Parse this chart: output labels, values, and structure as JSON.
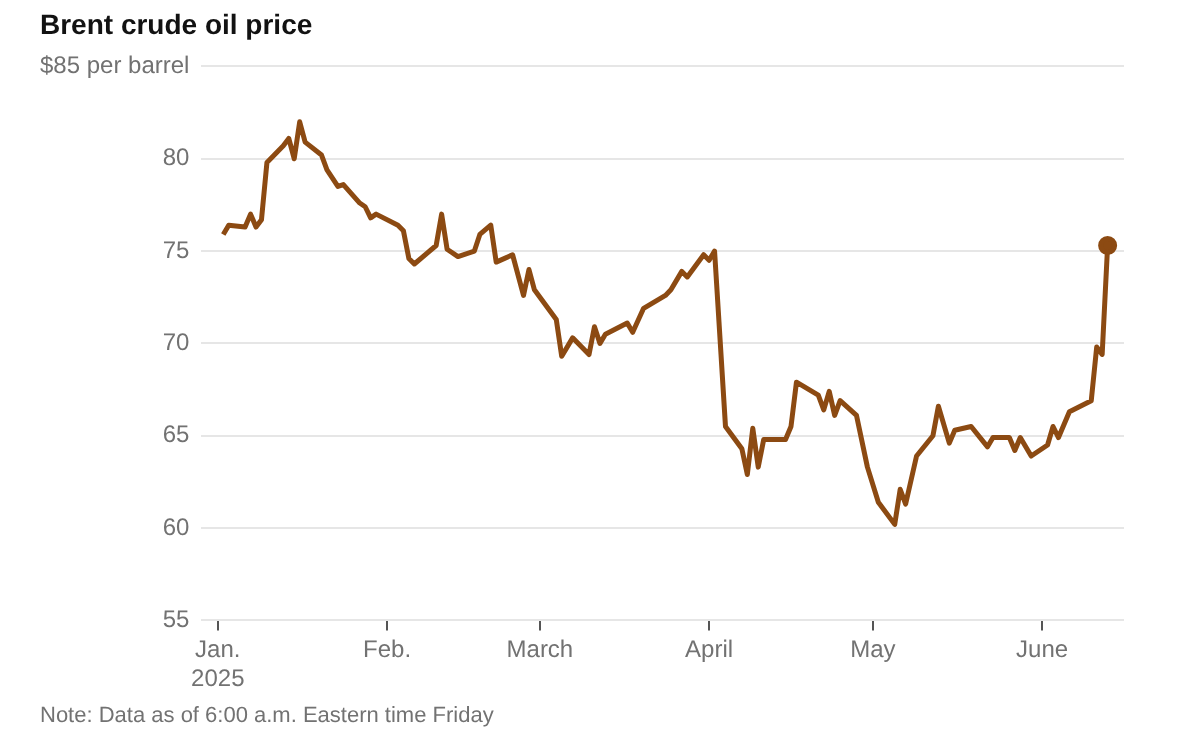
{
  "chart_data": {
    "type": "line",
    "title": "Brent crude oil price",
    "x": [
      "2025-01-02",
      "2025-01-03",
      "2025-01-06",
      "2025-01-07",
      "2025-01-08",
      "2025-01-09",
      "2025-01-10",
      "2025-01-13",
      "2025-01-14",
      "2025-01-15",
      "2025-01-16",
      "2025-01-17",
      "2025-01-20",
      "2025-01-21",
      "2025-01-23",
      "2025-01-24",
      "2025-01-27",
      "2025-01-28",
      "2025-01-29",
      "2025-01-30",
      "2025-02-03",
      "2025-02-04",
      "2025-02-05",
      "2025-02-06",
      "2025-02-10",
      "2025-02-11",
      "2025-02-12",
      "2025-02-14",
      "2025-02-17",
      "2025-02-18",
      "2025-02-20",
      "2025-02-21",
      "2025-02-24",
      "2025-02-26",
      "2025-02-27",
      "2025-02-28",
      "2025-03-04",
      "2025-03-05",
      "2025-03-07",
      "2025-03-10",
      "2025-03-11",
      "2025-03-12",
      "2025-03-13",
      "2025-03-17",
      "2025-03-18",
      "2025-03-20",
      "2025-03-24",
      "2025-03-25",
      "2025-03-27",
      "2025-03-28",
      "2025-03-31",
      "2025-04-01",
      "2025-04-02",
      "2025-04-04",
      "2025-04-07",
      "2025-04-08",
      "2025-04-09",
      "2025-04-10",
      "2025-04-11",
      "2025-04-15",
      "2025-04-16",
      "2025-04-17",
      "2025-04-21",
      "2025-04-22",
      "2025-04-23",
      "2025-04-24",
      "2025-04-25",
      "2025-04-28",
      "2025-04-30",
      "2025-05-02",
      "2025-05-05",
      "2025-05-06",
      "2025-05-07",
      "2025-05-09",
      "2025-05-12",
      "2025-05-13",
      "2025-05-15",
      "2025-05-16",
      "2025-05-19",
      "2025-05-22",
      "2025-05-23",
      "2025-05-26",
      "2025-05-27",
      "2025-05-28",
      "2025-05-30",
      "2025-06-02",
      "2025-06-03",
      "2025-06-04",
      "2025-06-06",
      "2025-06-10",
      "2025-06-11",
      "2025-06-12",
      "2025-06-13"
    ],
    "series": [
      {
        "color": "#8c4a12",
        "values": [
          75.9,
          76.4,
          76.3,
          77.0,
          76.3,
          76.7,
          79.8,
          80.7,
          81.1,
          80.0,
          82.0,
          80.9,
          80.2,
          79.4,
          78.5,
          78.6,
          77.6,
          77.4,
          76.8,
          77.0,
          76.4,
          76.1,
          74.6,
          74.3,
          75.3,
          77.0,
          75.1,
          74.7,
          75.0,
          75.9,
          76.4,
          74.4,
          74.8,
          72.6,
          74.0,
          72.9,
          71.3,
          69.3,
          70.3,
          69.4,
          70.9,
          70.0,
          70.5,
          71.1,
          70.6,
          71.9,
          72.6,
          72.9,
          73.9,
          73.6,
          74.8,
          74.5,
          75.0,
          65.5,
          64.3,
          62.9,
          65.4,
          63.3,
          64.8,
          64.8,
          65.5,
          67.9,
          67.2,
          66.4,
          67.4,
          66.1,
          66.9,
          66.1,
          63.3,
          61.4,
          60.2,
          62.1,
          61.3,
          63.9,
          65.0,
          66.6,
          64.6,
          65.3,
          65.5,
          64.4,
          64.9,
          64.9,
          64.2,
          64.9,
          63.9,
          64.5,
          65.5,
          64.9,
          66.3,
          66.9,
          69.8,
          69.4,
          75.3
        ]
      }
    ],
    "xlim": [
      "2024-12-29",
      "2025-06-16"
    ],
    "xticks": [
      {
        "value": "2025-01-01",
        "label": "Jan.\n2025"
      },
      {
        "value": "2025-02-01",
        "label": "Feb."
      },
      {
        "value": "2025-03-01",
        "label": "March"
      },
      {
        "value": "2025-04-01",
        "label": "April"
      },
      {
        "value": "2025-05-01",
        "label": "May"
      },
      {
        "value": "2025-06-01",
        "label": "June"
      }
    ],
    "ylim": [
      55,
      85
    ],
    "yticks": [
      55,
      60,
      65,
      70,
      75,
      80,
      {
        "value": 85,
        "label": "$85 per barrel"
      }
    ],
    "grid": "y",
    "line_style": "solid",
    "annotations": [
      "Note: Data as of 6:00 a.m. Eastern time Friday"
    ]
  }
}
